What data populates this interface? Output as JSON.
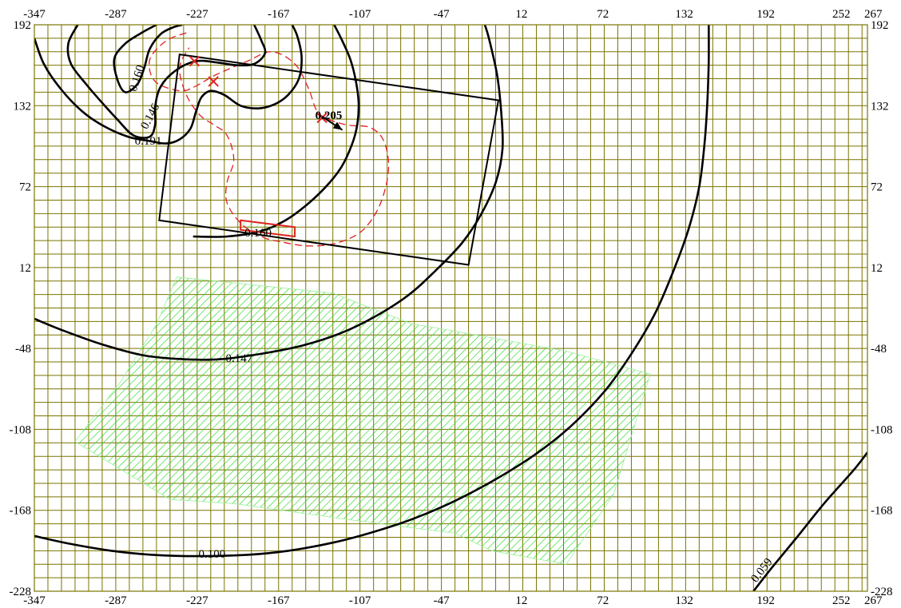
{
  "chart_data": {
    "type": "contour",
    "title": "",
    "xlabel": "",
    "ylabel": "",
    "xlim": [
      -347,
      267
    ],
    "ylim": [
      -228,
      192
    ],
    "x_ticks": [
      -347,
      -287,
      -227,
      -167,
      -107,
      -47,
      12,
      72,
      132,
      192,
      252,
      267
    ],
    "y_ticks": [
      192,
      132,
      72,
      12,
      -48,
      -108,
      -168,
      -228
    ],
    "grid": true,
    "grid_color": "#7a7400",
    "contours": [
      {
        "level": "0.059",
        "points": [
          [
            183,
            -228
          ],
          [
            197,
            -210
          ],
          [
            215,
            -188
          ],
          [
            235,
            -163
          ],
          [
            257,
            -138
          ],
          [
            267,
            -125
          ]
        ]
      },
      {
        "level": "0.100",
        "points": [
          [
            -347,
            -187
          ],
          [
            -320,
            -193
          ],
          [
            -290,
            -198
          ],
          [
            -260,
            -201
          ],
          [
            -227,
            -202
          ],
          [
            -190,
            -201
          ],
          [
            -160,
            -198
          ],
          [
            -127,
            -192
          ],
          [
            -97,
            -184
          ],
          [
            -67,
            -174
          ],
          [
            -37,
            -161
          ],
          [
            -7,
            -145
          ],
          [
            23,
            -126
          ],
          [
            48,
            -106
          ],
          [
            73,
            -80
          ],
          [
            93,
            -52
          ],
          [
            110,
            -23
          ],
          [
            123,
            7
          ],
          [
            135,
            40
          ],
          [
            143,
            72
          ],
          [
            147,
            105
          ],
          [
            149,
            135
          ],
          [
            150,
            165
          ],
          [
            150,
            192
          ]
        ]
      },
      {
        "level": "0.147",
        "points": [
          [
            -347,
            -26
          ],
          [
            -325,
            -35
          ],
          [
            -297,
            -45
          ],
          [
            -267,
            -53
          ],
          [
            -237,
            -56
          ],
          [
            -210,
            -56
          ],
          [
            -180,
            -52
          ],
          [
            -150,
            -46
          ],
          [
            -122,
            -37
          ],
          [
            -97,
            -25
          ],
          [
            -72,
            -9
          ],
          [
            -52,
            9
          ],
          [
            -32,
            30
          ],
          [
            -18,
            51
          ],
          [
            -7,
            75
          ],
          [
            -2,
            100
          ],
          [
            -3,
            128
          ],
          [
            -6,
            155
          ],
          [
            -12,
            182
          ],
          [
            -15,
            192
          ]
        ]
      },
      {
        "level": "0.191",
        "points": [
          [
            -347,
            182
          ],
          [
            -340,
            163
          ],
          [
            -328,
            145
          ],
          [
            -312,
            128
          ],
          [
            -296,
            117
          ],
          [
            -278,
            109
          ],
          [
            -263,
            106
          ],
          [
            -250,
            104
          ],
          [
            -240,
            107
          ],
          [
            -232,
            115
          ],
          [
            -228,
            127
          ],
          [
            -224,
            138
          ],
          [
            -217,
            143
          ],
          [
            -207,
            140
          ],
          [
            -195,
            132
          ],
          [
            -182,
            130
          ],
          [
            -170,
            133
          ],
          [
            -160,
            140
          ],
          [
            -152,
            152
          ],
          [
            -150,
            168
          ],
          [
            -153,
            183
          ],
          [
            -157,
            192
          ]
        ]
      },
      {
        "level": "0.160",
        "points": [
          [
            -230,
            35
          ],
          [
            -205,
            35
          ],
          [
            -180,
            39
          ],
          [
            -162,
            47
          ],
          [
            -148,
            57
          ],
          [
            -133,
            71
          ],
          [
            -121,
            86
          ],
          [
            -113,
            103
          ],
          [
            -109,
            118
          ],
          [
            -108,
            134
          ],
          [
            -110,
            150
          ],
          [
            -114,
            166
          ],
          [
            -120,
            180
          ],
          [
            -126,
            192
          ]
        ]
      },
      {
        "level": "0.146",
        "points": [
          [
            -315,
            192
          ],
          [
            -322,
            178
          ],
          [
            -320,
            163
          ],
          [
            -308,
            147
          ],
          [
            -296,
            133
          ],
          [
            -286,
            122
          ],
          [
            -274,
            110
          ],
          [
            -262,
            109
          ],
          [
            -258,
            118
          ],
          [
            -258,
            131
          ],
          [
            -254,
            146
          ],
          [
            -243,
            158
          ],
          [
            -228,
            165
          ],
          [
            -212,
            164
          ],
          [
            -198,
            162
          ],
          [
            -185,
            163
          ],
          [
            -177,
            171
          ],
          [
            -180,
            181
          ],
          [
            -185,
            192
          ]
        ]
      },
      {
        "level": "0.160",
        "points": [
          [
            -257,
            192
          ],
          [
            -268,
            186
          ],
          [
            -280,
            178
          ],
          [
            -288,
            167
          ],
          [
            -286,
            152
          ],
          [
            -280,
            142
          ],
          [
            -271,
            148
          ],
          [
            -266,
            160
          ],
          [
            -262,
            174
          ],
          [
            -254,
            185
          ],
          [
            -245,
            190
          ],
          [
            -238,
            192
          ]
        ]
      }
    ],
    "contour_labels": [
      {
        "text": "0.059",
        "x": 185,
        "y": -222,
        "angle": -52
      },
      {
        "text": "0.100",
        "x": -226,
        "y": -203,
        "angle": 0
      },
      {
        "text": "0.147",
        "x": -206,
        "y": -58,
        "angle": 0
      },
      {
        "text": "0.191",
        "x": -273,
        "y": 103,
        "angle": 0
      },
      {
        "text": "0.160",
        "x": -192,
        "y": 35,
        "angle": 0
      },
      {
        "text": "0.146",
        "x": -264,
        "y": 114,
        "angle": -62
      },
      {
        "text": "0.160",
        "x": -272,
        "y": 142,
        "angle": -72
      }
    ],
    "annotation": {
      "text": "0.205",
      "x": -140,
      "y": 122
    },
    "outline_polygon": [
      [
        -240,
        170
      ],
      [
        -5,
        136
      ],
      [
        -27,
        14
      ],
      [
        -255,
        47
      ]
    ],
    "hatched_region": [
      [
        -242,
        5
      ],
      [
        -127,
        -7
      ],
      [
        -68,
        -30
      ],
      [
        -55,
        -32
      ],
      [
        45,
        -50
      ],
      [
        107,
        -67
      ],
      [
        80,
        -156
      ],
      [
        45,
        -208
      ],
      [
        -10,
        -198
      ],
      [
        -37,
        -185
      ],
      [
        -115,
        -175
      ],
      [
        -200,
        -163
      ],
      [
        -247,
        -160
      ],
      [
        -317,
        -117
      ],
      [
        -283,
        -72
      ],
      [
        -257,
        -30
      ]
    ],
    "hatch_color": "#22dd22",
    "dashed_path": [
      [
        -235,
        186
      ],
      [
        -250,
        180
      ],
      [
        -262,
        166
      ],
      [
        -258,
        150
      ],
      [
        -240,
        143
      ],
      [
        -229,
        146
      ],
      [
        -213,
        155
      ],
      [
        -190,
        165
      ],
      [
        -172,
        172
      ],
      [
        -155,
        163
      ],
      [
        -145,
        145
      ],
      [
        -137,
        126
      ],
      [
        -118,
        118
      ],
      [
        -100,
        116
      ],
      [
        -90,
        107
      ],
      [
        -86,
        90
      ],
      [
        -88,
        72
      ],
      [
        -95,
        53
      ],
      [
        -107,
        38
      ],
      [
        -125,
        30
      ],
      [
        -145,
        28
      ],
      [
        -165,
        31
      ],
      [
        -180,
        35
      ],
      [
        -195,
        45
      ],
      [
        -205,
        60
      ],
      [
        -205,
        75
      ],
      [
        -200,
        92
      ],
      [
        -205,
        110
      ],
      [
        -215,
        118
      ],
      [
        -225,
        125
      ],
      [
        -235,
        140
      ],
      [
        -240,
        160
      ],
      [
        -233,
        175
      ]
    ],
    "markers": [
      {
        "type": "x",
        "x": -229,
        "y": 165
      },
      {
        "type": "x",
        "x": -215,
        "y": 150
      },
      {
        "type": "x",
        "x": -135,
        "y": 123
      }
    ],
    "arrow": {
      "from": [
        -135,
        124
      ],
      "to": [
        -120,
        114
      ]
    },
    "source_rect": [
      [
        -195,
        47
      ],
      [
        -155,
        42
      ],
      [
        -155,
        35
      ],
      [
        -195,
        40
      ]
    ],
    "colors": {
      "contour": "#000000",
      "dashed": "#e02020",
      "marker": "#e02020",
      "source": "#e02020"
    }
  }
}
